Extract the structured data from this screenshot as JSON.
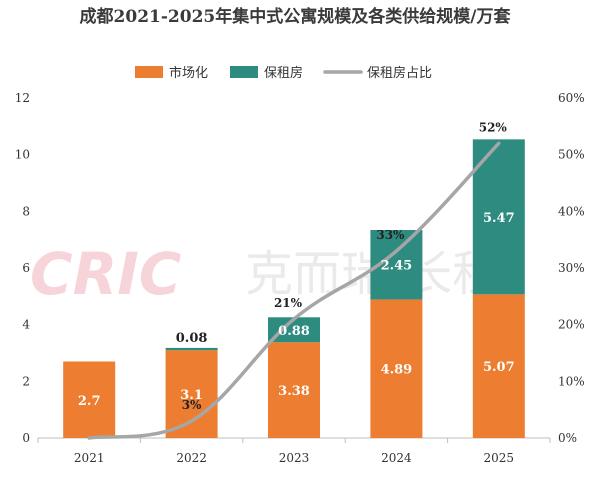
{
  "chart_data": {
    "type": "bar",
    "stacked": true,
    "title": "成都2021-2025年集中式公寓规模及各类供给规模/万套",
    "categories": [
      "2021",
      "2022",
      "2023",
      "2024",
      "2025"
    ],
    "series": [
      {
        "name": "市场化",
        "color": "#ed7d31",
        "values": [
          2.7,
          3.1,
          3.38,
          4.89,
          5.07
        ],
        "labels": [
          "2.7",
          "3.1",
          "3.38",
          "4.89",
          "5.07"
        ]
      },
      {
        "name": "保租房",
        "color": "#2e8b80",
        "values": [
          0,
          0.08,
          0.88,
          2.45,
          5.47
        ],
        "labels": [
          "",
          "0.08",
          "0.88",
          "2.45",
          "5.47"
        ]
      }
    ],
    "line_series": {
      "name": "保租房占比",
      "color": "#a6a6a6",
      "axis": "right",
      "values": [
        0,
        3,
        21,
        33,
        52
      ],
      "labels": [
        "",
        "3%",
        "21%",
        "33%",
        "52%"
      ]
    },
    "ylim": [
      0,
      12
    ],
    "yticks": [
      "0",
      "2",
      "4",
      "6",
      "8",
      "10",
      "12"
    ],
    "y2lim": [
      0,
      60
    ],
    "y2ticks": [
      "0%",
      "10%",
      "20%",
      "30%",
      "40%",
      "50%",
      "60%"
    ],
    "legend_position": "top-center",
    "grid": false
  },
  "watermark": {
    "latin": "CRIC",
    "cjk": "克而瑞·长租"
  }
}
